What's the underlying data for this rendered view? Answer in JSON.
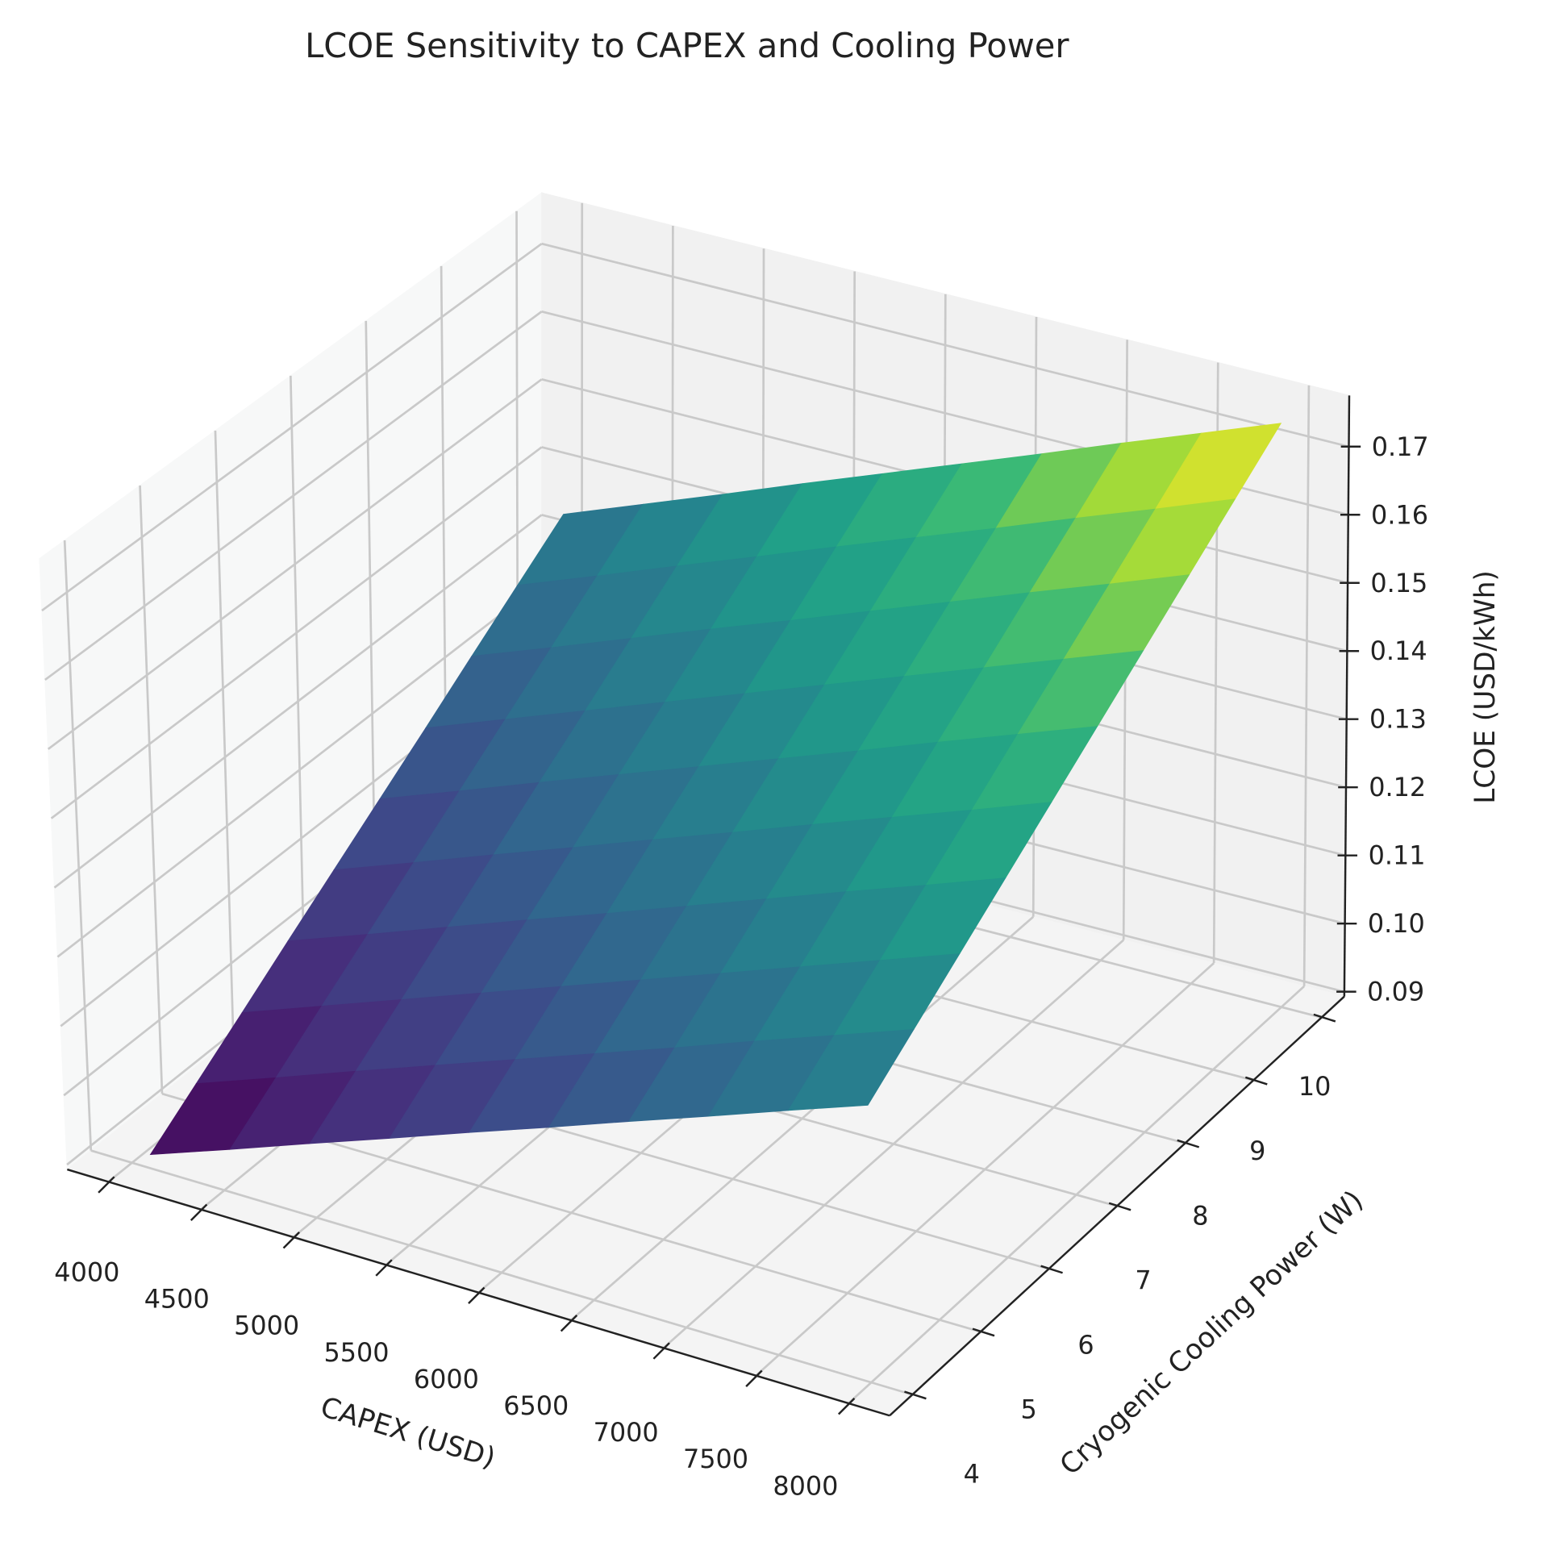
{
  "chart_data": {
    "type": "surface",
    "title": "LCOE Sensitivity to CAPEX and Cooling Power",
    "xlabel": "CAPEX (USD)",
    "ylabel": "Cryogenic Cooling Power (W)",
    "zlabel": "LCOE (USD/kWh)",
    "colormap": "viridis",
    "xlim": [
      4000,
      8000
    ],
    "ylim": [
      4,
      10
    ],
    "zlim": [
      0.0893,
      0.1775
    ],
    "xticks": [
      "4000",
      "4500",
      "5000",
      "5500",
      "6000",
      "6500",
      "7000",
      "7500",
      "8000"
    ],
    "yticks": [
      "4",
      "5",
      "6",
      "7",
      "8",
      "9",
      "10"
    ],
    "zticks": [
      "0.09",
      "0.10",
      "0.11",
      "0.12",
      "0.13",
      "0.14",
      "0.15",
      "0.16",
      "0.17"
    ],
    "x": [
      4000,
      4444,
      4889,
      5333,
      5778,
      6222,
      6667,
      7111,
      7556,
      8000
    ],
    "y": [
      4,
      4.667,
      5.333,
      6,
      6.667,
      7.333,
      8,
      8.667,
      9.333,
      10
    ],
    "z": [
      [
        0.092,
        0.0962,
        0.1005,
        0.1047,
        0.109,
        0.1132,
        0.1175,
        0.1217,
        0.126,
        0.1302
      ],
      [
        0.0959,
        0.1002,
        0.1046,
        0.1089,
        0.1132,
        0.1175,
        0.1218,
        0.1262,
        0.1305,
        0.1348
      ],
      [
        0.0998,
        0.1042,
        0.1086,
        0.113,
        0.1174,
        0.1218,
        0.1262,
        0.1306,
        0.135,
        0.1394
      ],
      [
        0.1038,
        0.1082,
        0.1127,
        0.1172,
        0.1216,
        0.1261,
        0.1306,
        0.1351,
        0.1395,
        0.144
      ],
      [
        0.1077,
        0.1122,
        0.1168,
        0.1213,
        0.1259,
        0.1304,
        0.135,
        0.1395,
        0.144,
        0.1486
      ],
      [
        0.1116,
        0.1162,
        0.1209,
        0.1255,
        0.1301,
        0.1347,
        0.1393,
        0.144,
        0.1486,
        0.1532
      ],
      [
        0.1155,
        0.1202,
        0.1249,
        0.1296,
        0.1343,
        0.139,
        0.1437,
        0.1484,
        0.1531,
        0.1578
      ],
      [
        0.1195,
        0.1242,
        0.129,
        0.1338,
        0.1385,
        0.1433,
        0.1481,
        0.1529,
        0.1576,
        0.1624
      ],
      [
        0.1234,
        0.1282,
        0.1331,
        0.1379,
        0.1428,
        0.1476,
        0.1524,
        0.1573,
        0.1621,
        0.167
      ],
      [
        0.1273,
        0.1322,
        0.1371,
        0.1421,
        0.147,
        0.1519,
        0.1568,
        0.1618,
        0.1667,
        0.1716
      ]
    ],
    "grid": true
  }
}
